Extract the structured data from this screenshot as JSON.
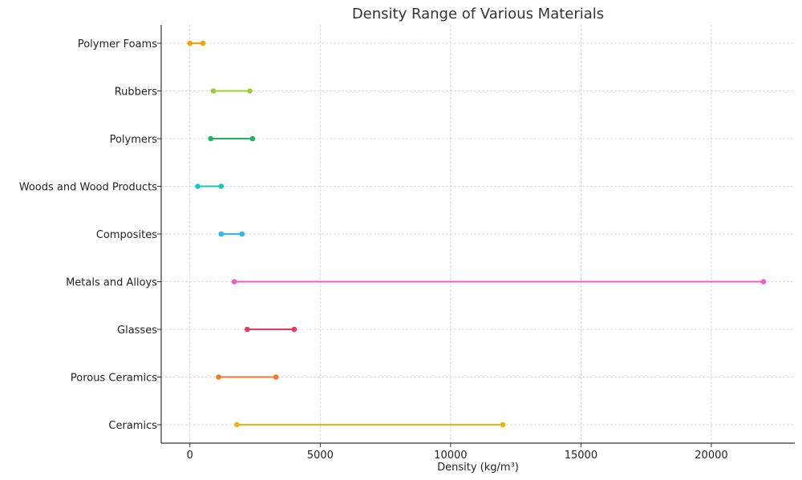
{
  "chart_data": {
    "type": "range",
    "title": "Density Range of Various Materials",
    "xlabel": "Density (kg/m³)",
    "ylabel": "",
    "xlim": [
      -1100,
      23200
    ],
    "xticks": [
      0,
      5000,
      10000,
      15000,
      20000
    ],
    "xtick_labels": [
      "0",
      "5000",
      "10000",
      "15000",
      "20000"
    ],
    "grid": true,
    "categories": [
      "Polymer Foams",
      "Rubbers",
      "Polymers",
      "Woods and Wood Products",
      "Composites",
      "Metals and Alloys",
      "Glasses",
      "Porous Ceramics",
      "Ceramics"
    ],
    "series": [
      {
        "name": "Polymer Foams",
        "min": 0,
        "max": 500,
        "color": "#f5a300"
      },
      {
        "name": "Rubbers",
        "min": 900,
        "max": 2300,
        "color": "#9acd32"
      },
      {
        "name": "Polymers",
        "min": 800,
        "max": 2400,
        "color": "#1bb85a"
      },
      {
        "name": "Woods and Wood Products",
        "min": 300,
        "max": 1200,
        "color": "#16c7c0"
      },
      {
        "name": "Composites",
        "min": 1200,
        "max": 2000,
        "color": "#2fb7ef"
      },
      {
        "name": "Metals and Alloys",
        "min": 1700,
        "max": 22000,
        "color": "#f25cc0"
      },
      {
        "name": "Glasses",
        "min": 2200,
        "max": 4000,
        "color": "#ee3560"
      },
      {
        "name": "Porous Ceramics",
        "min": 1100,
        "max": 3300,
        "color": "#ef7a2e"
      },
      {
        "name": "Ceramics",
        "min": 1800,
        "max": 12000,
        "color": "#f2b208"
      }
    ]
  }
}
